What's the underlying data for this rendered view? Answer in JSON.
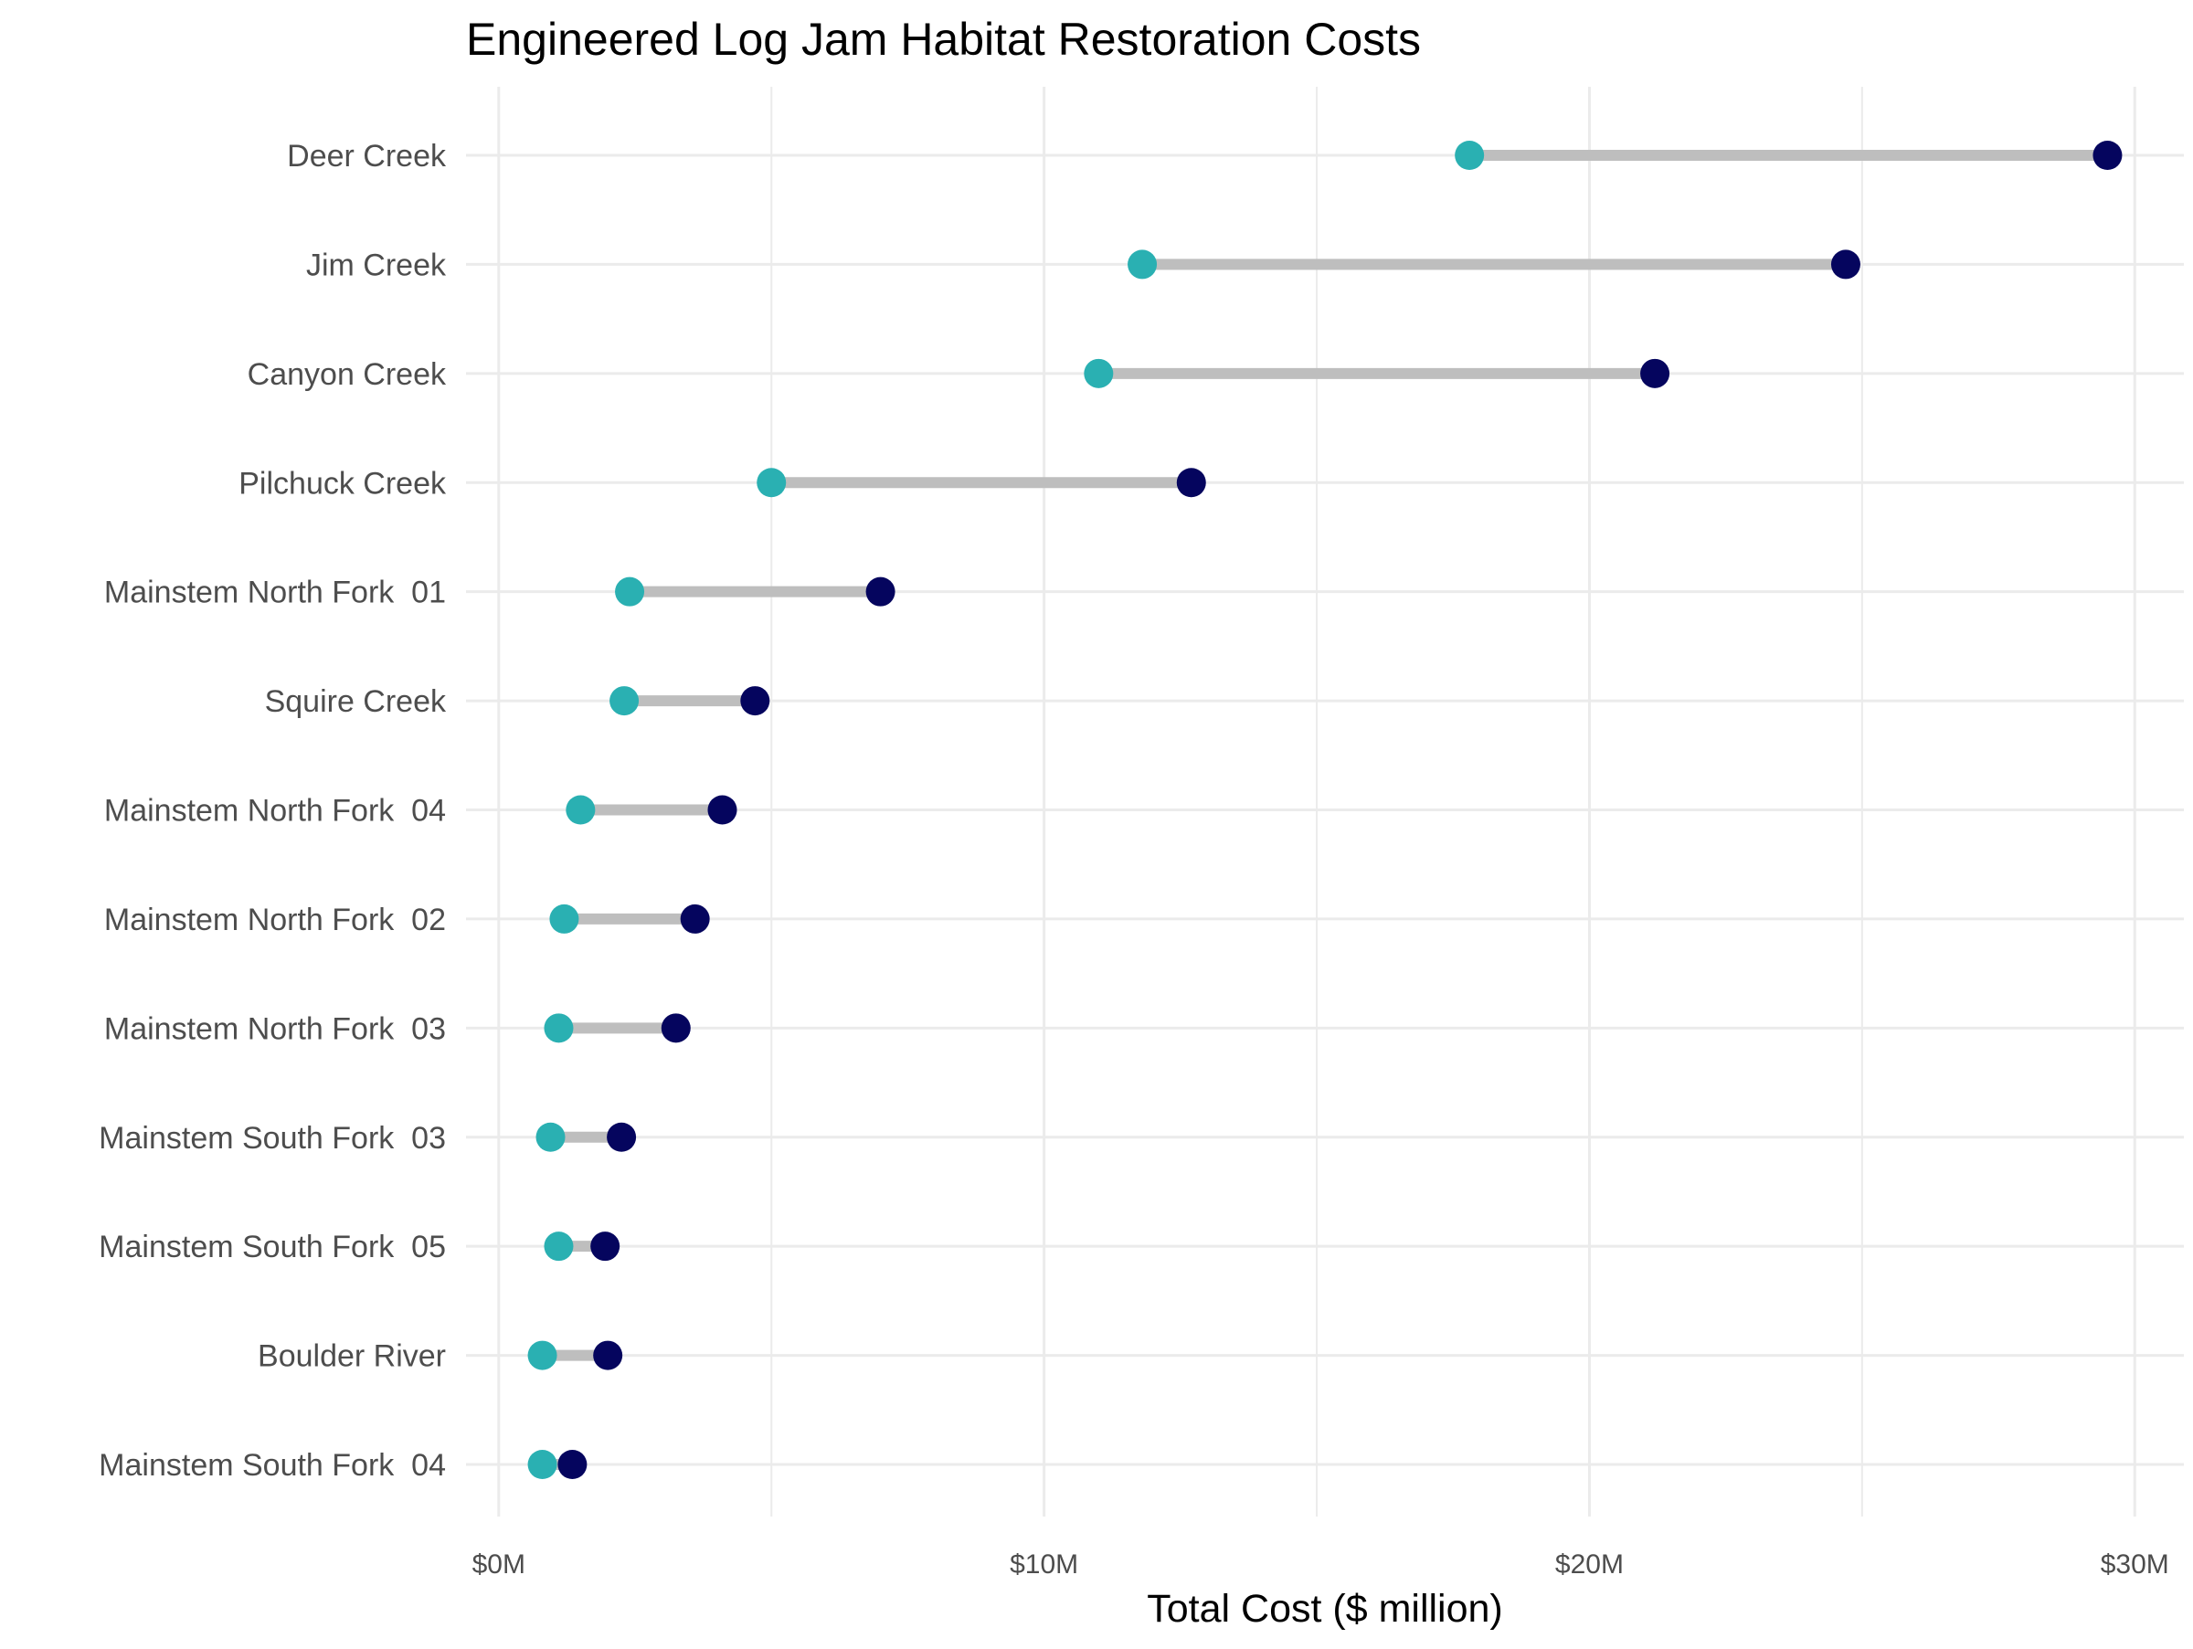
{
  "chart_data": {
    "type": "dumbbell",
    "title": "Engineered Log Jam Habitat Restoration Costs",
    "xlabel": "Total Cost ($ million)",
    "ylabel": "",
    "xlim": [
      -0.6,
      30.9
    ],
    "x_ticks": [
      0,
      10,
      20,
      30
    ],
    "x_tick_labels": [
      "$0M",
      "$10M",
      "$20M",
      "$30M"
    ],
    "grid": true,
    "legend": "none",
    "colors": {
      "low": "#2ab0b2",
      "high": "#05055e",
      "segment": "#bebebe",
      "grid": "#ebebeb"
    },
    "categories": [
      "Deer Creek",
      "Jim Creek",
      "Canyon Creek",
      "Pilchuck Creek",
      "Mainstem North Fork  01",
      "Squire Creek",
      "Mainstem North Fork  04",
      "Mainstem North Fork  02",
      "Mainstem North Fork  03",
      "Mainstem South Fork  03",
      "Mainstem South Fork  05",
      "Boulder River",
      "Mainstem South Fork  04"
    ],
    "series": [
      {
        "values": [
          17.8,
          11.8,
          11.0,
          5.0,
          2.4,
          2.3,
          1.5,
          1.2,
          1.1,
          0.95,
          1.1,
          0.8,
          0.8
        ]
      },
      {
        "values": [
          29.5,
          24.7,
          21.2,
          12.7,
          7.0,
          4.7,
          4.1,
          3.6,
          3.25,
          2.25,
          1.95,
          2.0,
          1.35
        ]
      }
    ]
  }
}
